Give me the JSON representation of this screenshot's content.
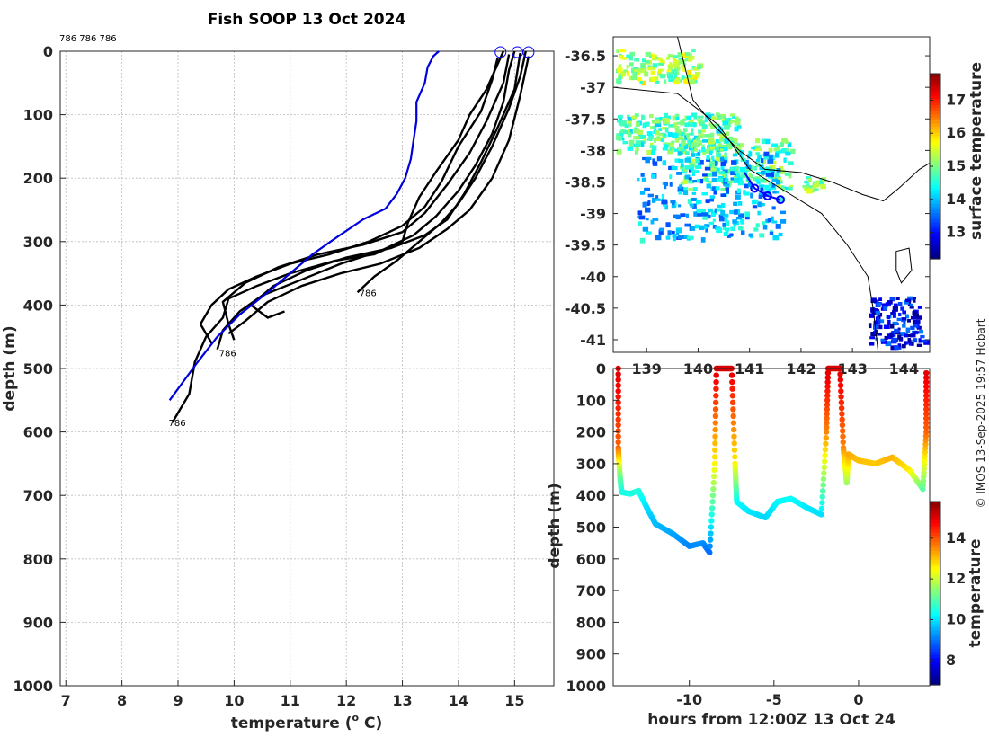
{
  "title": "Fish SOOP 13 Oct 2024",
  "credit": "© IMOS 13-Sep-2025 19:57 Hobart",
  "colors": {
    "profile": "#000000",
    "climatology": "#0000dd",
    "track": "#0000ff",
    "coast": "#000000"
  },
  "chart_data": [
    {
      "type": "line",
      "name": "profiles",
      "xlabel": "temperature (",
      "xlabel_sup": "o",
      "xlabel_end": " C)",
      "ylabel": "depth (m)",
      "xlim": [
        6.9,
        15.7
      ],
      "ylim": [
        0,
        1000
      ],
      "xticks": [
        7,
        8,
        9,
        10,
        11,
        12,
        13,
        14,
        15
      ],
      "yticks": [
        0,
        100,
        200,
        300,
        400,
        500,
        600,
        700,
        800,
        900,
        1000
      ],
      "header_labels": "786 786 786",
      "end_labels": [
        "786",
        "786",
        "786"
      ],
      "end_points": [
        [
          12.2,
          380
        ],
        [
          9.7,
          475
        ],
        [
          8.8,
          585
        ]
      ],
      "surface_circles": [
        [
          14.75,
          0
        ],
        [
          15.05,
          0
        ],
        [
          15.25,
          0
        ]
      ],
      "climatology": {
        "name": "climatology",
        "points": [
          [
            13.65,
            0
          ],
          [
            13.55,
            8
          ],
          [
            13.45,
            25
          ],
          [
            13.4,
            50
          ],
          [
            13.3,
            70
          ],
          [
            13.25,
            80
          ],
          [
            13.25,
            110
          ],
          [
            13.2,
            140
          ],
          [
            13.15,
            170
          ],
          [
            13.05,
            200
          ],
          [
            12.9,
            225
          ],
          [
            12.7,
            248
          ],
          [
            12.3,
            265
          ],
          [
            11.8,
            295
          ],
          [
            11.4,
            320
          ],
          [
            11.0,
            350
          ],
          [
            10.6,
            380
          ],
          [
            10.1,
            415
          ],
          [
            9.7,
            450
          ],
          [
            9.35,
            490
          ],
          [
            9.1,
            520
          ],
          [
            8.85,
            550
          ]
        ]
      },
      "series": [
        {
          "name": "profile-1",
          "points": [
            [
              14.8,
              0
            ],
            [
              14.7,
              20
            ],
            [
              14.5,
              60
            ],
            [
              14.2,
              100
            ],
            [
              14.0,
              140
            ],
            [
              13.6,
              190
            ],
            [
              13.3,
              230
            ],
            [
              13.1,
              270
            ],
            [
              13.0,
              300
            ],
            [
              12.5,
              320
            ],
            [
              11.8,
              330
            ],
            [
              11.0,
              350
            ],
            [
              10.4,
              370
            ],
            [
              9.9,
              390
            ],
            [
              9.8,
              420
            ],
            [
              9.5,
              450
            ],
            [
              9.3,
              490
            ],
            [
              9.2,
              540
            ],
            [
              9.0,
              570
            ],
            [
              8.9,
              585
            ]
          ]
        },
        {
          "name": "profile-2",
          "points": [
            [
              15.0,
              0
            ],
            [
              14.9,
              30
            ],
            [
              14.8,
              80
            ],
            [
              14.6,
              130
            ],
            [
              14.3,
              180
            ],
            [
              14.0,
              220
            ],
            [
              13.6,
              260
            ],
            [
              13.2,
              290
            ],
            [
              12.6,
              315
            ],
            [
              11.9,
              335
            ],
            [
              11.2,
              360
            ],
            [
              10.5,
              385
            ],
            [
              10.1,
              410
            ],
            [
              9.8,
              440
            ],
            [
              9.7,
              470
            ]
          ]
        },
        {
          "name": "profile-3",
          "points": [
            [
              15.2,
              0
            ],
            [
              15.1,
              40
            ],
            [
              14.9,
              90
            ],
            [
              14.6,
              150
            ],
            [
              14.3,
              200
            ],
            [
              14.0,
              240
            ],
            [
              13.7,
              270
            ],
            [
              13.3,
              300
            ],
            [
              12.9,
              330
            ],
            [
              12.5,
              355
            ],
            [
              12.2,
              380
            ]
          ]
        },
        {
          "name": "profile-4",
          "points": [
            [
              14.9,
              5
            ],
            [
              14.8,
              50
            ],
            [
              14.5,
              110
            ],
            [
              14.2,
              160
            ],
            [
              13.8,
              210
            ],
            [
              13.4,
              255
            ],
            [
              13.0,
              285
            ],
            [
              12.3,
              305
            ],
            [
              11.5,
              320
            ],
            [
              10.8,
              340
            ],
            [
              10.2,
              365
            ],
            [
              9.8,
              395
            ],
            [
              9.9,
              430
            ],
            [
              10.0,
              455
            ]
          ]
        },
        {
          "name": "profile-5",
          "points": [
            [
              15.1,
              3
            ],
            [
              15.0,
              60
            ],
            [
              14.7,
              120
            ],
            [
              14.4,
              175
            ],
            [
              14.1,
              225
            ],
            [
              13.8,
              265
            ],
            [
              13.4,
              290
            ],
            [
              12.8,
              310
            ],
            [
              12.0,
              325
            ],
            [
              11.3,
              345
            ],
            [
              10.7,
              370
            ],
            [
              10.3,
              400
            ],
            [
              10.6,
              420
            ],
            [
              10.9,
              410
            ]
          ]
        },
        {
          "name": "profile-6",
          "points": [
            [
              15.25,
              8
            ],
            [
              15.1,
              70
            ],
            [
              14.9,
              140
            ],
            [
              14.6,
              200
            ],
            [
              14.2,
              250
            ],
            [
              13.8,
              280
            ],
            [
              13.3,
              310
            ],
            [
              12.6,
              335
            ],
            [
              11.9,
              350
            ],
            [
              11.2,
              370
            ],
            [
              10.6,
              395
            ],
            [
              10.2,
              425
            ],
            [
              9.9,
              445
            ]
          ]
        },
        {
          "name": "profile-7",
          "points": [
            [
              14.7,
              10
            ],
            [
              14.6,
              45
            ],
            [
              14.4,
              95
            ],
            [
              14.0,
              150
            ],
            [
              13.7,
              205
            ],
            [
              13.4,
              245
            ],
            [
              13.0,
              275
            ],
            [
              12.4,
              300
            ],
            [
              11.7,
              320
            ],
            [
              11.0,
              335
            ],
            [
              10.4,
              355
            ],
            [
              9.9,
              375
            ],
            [
              9.6,
              400
            ],
            [
              9.4,
              430
            ],
            [
              9.6,
              460
            ]
          ]
        }
      ]
    },
    {
      "type": "heatmap",
      "name": "map",
      "yticks": [
        "-36.5",
        "-37",
        "-37.5",
        "-38",
        "-38.5",
        "-39",
        "-39.5",
        "-40",
        "-40.5",
        "-41"
      ],
      "xticks": [
        "139",
        "140",
        "141",
        "142",
        "143",
        "144"
      ],
      "colorbar_label": "surface temperature",
      "colorbar_ticks": [
        "17",
        "16",
        "15",
        "14",
        "13"
      ],
      "colorbar_range": [
        12.2,
        17.8
      ],
      "track": [
        [
          141.1,
          -38.6
        ],
        [
          141.35,
          -38.72
        ],
        [
          141.6,
          -38.78
        ]
      ]
    },
    {
      "type": "scatter",
      "name": "section",
      "xlabel": "hours from 12:00Z 13 Oct 24",
      "ylabel": "depth (m)",
      "xlim": [
        -14.5,
        4.2
      ],
      "ylim": [
        0,
        1000
      ],
      "xticks": [
        "-10",
        "-5",
        "0"
      ],
      "xtick_values": [
        -10,
        -5,
        0
      ],
      "yticks": [
        0,
        100,
        200,
        300,
        400,
        500,
        600,
        700,
        800,
        900,
        1000
      ],
      "colorbar_label": "temperature",
      "colorbar_ticks": [
        "14",
        "12",
        "10",
        "8"
      ],
      "colorbar_range": [
        6.8,
        15.8
      ],
      "points": [
        [
          -14.2,
          0,
          15
        ],
        [
          -14.2,
          250,
          13.8
        ],
        [
          -14.1,
          340,
          11.2
        ],
        [
          -14.0,
          390,
          10.4
        ],
        [
          -13.5,
          395,
          10.4
        ],
        [
          -13.0,
          385,
          10.5
        ],
        [
          -12.5,
          440,
          9.9
        ],
        [
          -12.0,
          490,
          9.6
        ],
        [
          -11.0,
          520,
          9.4
        ],
        [
          -10.0,
          560,
          9.1
        ],
        [
          -9.2,
          550,
          9.2
        ],
        [
          -8.8,
          580,
          8.9
        ],
        [
          -8.5,
          300,
          12.5
        ],
        [
          -8.4,
          0,
          15
        ],
        [
          -7.5,
          0,
          15
        ],
        [
          -7.3,
          300,
          12.5
        ],
        [
          -7.2,
          420,
          10.2
        ],
        [
          -6.5,
          450,
          10.0
        ],
        [
          -5.5,
          470,
          9.8
        ],
        [
          -4.8,
          420,
          10.1
        ],
        [
          -4.0,
          410,
          10.2
        ],
        [
          -3.0,
          440,
          10.0
        ],
        [
          -2.2,
          460,
          9.9
        ],
        [
          -1.9,
          200,
          13.5
        ],
        [
          -1.8,
          0,
          15
        ],
        [
          -1.1,
          0,
          15
        ],
        [
          -0.9,
          250,
          13.5
        ],
        [
          -0.7,
          360,
          11.5
        ],
        [
          -0.6,
          270,
          13.2
        ],
        [
          0.0,
          290,
          13.0
        ],
        [
          1.0,
          300,
          12.9
        ],
        [
          2.0,
          280,
          13.1
        ],
        [
          3.0,
          320,
          12.6
        ],
        [
          3.8,
          380,
          11.0
        ],
        [
          4.0,
          200,
          13.8
        ],
        [
          4.0,
          0,
          15
        ]
      ]
    }
  ]
}
